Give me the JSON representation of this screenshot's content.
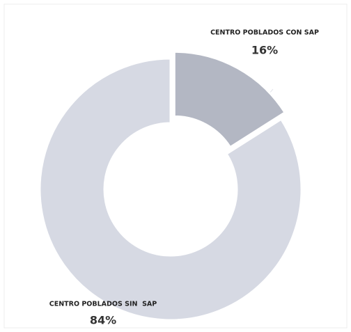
{
  "chart_data": {
    "type": "donut",
    "categories": [
      "CENTRO POBLADOS CON SAP",
      "CENTRO POBLADOS SIN  SAP"
    ],
    "values": [
      16,
      84
    ],
    "value_labels": [
      "16%",
      "84%"
    ],
    "colors": [
      "#b3b7c3",
      "#d6d9e3"
    ]
  }
}
